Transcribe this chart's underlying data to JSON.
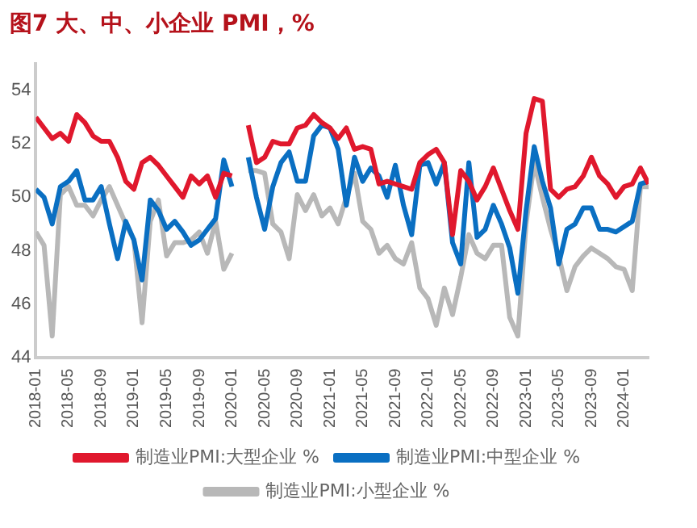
{
  "chart_data": {
    "type": "line",
    "title": "图7 大、中、小企业 PMI，%",
    "x": [
      "2018-01",
      "2018-02",
      "2018-03",
      "2018-04",
      "2018-05",
      "2018-06",
      "2018-07",
      "2018-08",
      "2018-09",
      "2018-10",
      "2018-11",
      "2018-12",
      "2019-01",
      "2019-02",
      "2019-03",
      "2019-04",
      "2019-05",
      "2019-06",
      "2019-07",
      "2019-08",
      "2019-09",
      "2019-10",
      "2019-11",
      "2019-12",
      "2020-01",
      "2020-02",
      "2020-03",
      "2020-04",
      "2020-05",
      "2020-06",
      "2020-07",
      "2020-08",
      "2020-09",
      "2020-10",
      "2020-11",
      "2020-12",
      "2021-01",
      "2021-02",
      "2021-03",
      "2021-04",
      "2021-05",
      "2021-06",
      "2021-07",
      "2021-08",
      "2021-09",
      "2021-10",
      "2021-11",
      "2021-12",
      "2022-01",
      "2022-02",
      "2022-03",
      "2022-04",
      "2022-05",
      "2022-06",
      "2022-07",
      "2022-08",
      "2022-09",
      "2022-10",
      "2022-11",
      "2022-12",
      "2023-01",
      "2023-02",
      "2023-03",
      "2023-04",
      "2023-05",
      "2023-06",
      "2023-07",
      "2023-08",
      "2023-09",
      "2023-10",
      "2023-11",
      "2023-12",
      "2024-01",
      "2024-02",
      "2024-03",
      "2024-04"
    ],
    "series": [
      {
        "name": "制造业PMI:大型企业 %",
        "color": "#e0182d",
        "values": [
          53.0,
          52.6,
          52.2,
          52.4,
          52.1,
          53.1,
          52.8,
          52.3,
          52.1,
          52.1,
          51.5,
          50.6,
          50.3,
          51.3,
          51.5,
          51.2,
          50.8,
          50.4,
          50.0,
          50.8,
          50.5,
          50.8,
          50.0,
          50.9,
          50.8,
          null,
          52.7,
          51.3,
          51.5,
          52.1,
          52.0,
          52.0,
          52.6,
          52.7,
          53.1,
          52.8,
          52.6,
          52.2,
          52.6,
          51.8,
          51.9,
          51.8,
          50.5,
          50.6,
          50.5,
          50.4,
          50.3,
          51.3,
          51.6,
          51.8,
          51.3,
          48.6,
          51.0,
          50.6,
          49.9,
          50.4,
          51.1,
          50.3,
          49.5,
          48.8,
          52.4,
          53.7,
          53.6,
          50.3,
          50.0,
          50.3,
          50.4,
          50.8,
          51.5,
          50.8,
          50.5,
          50.0,
          50.4,
          50.5,
          51.1,
          50.5
        ]
      },
      {
        "name": "制造业PMI:中型企业 %",
        "color": "#0a6fc2",
        "values": [
          50.3,
          50.0,
          49.0,
          50.4,
          50.6,
          51.0,
          49.9,
          49.9,
          50.4,
          49.0,
          47.7,
          49.1,
          48.4,
          46.9,
          49.9,
          49.5,
          48.8,
          49.1,
          48.7,
          48.2,
          48.4,
          48.8,
          49.2,
          51.4,
          50.4,
          null,
          51.5,
          50.0,
          48.8,
          50.4,
          51.3,
          51.7,
          50.6,
          50.6,
          52.3,
          52.7,
          52.6,
          51.8,
          49.7,
          51.5,
          50.6,
          51.1,
          50.8,
          50.0,
          51.2,
          49.7,
          48.6,
          51.2,
          51.3,
          50.5,
          51.3,
          48.3,
          47.5,
          51.3,
          48.5,
          48.8,
          49.7,
          49.0,
          48.1,
          46.4,
          49.5,
          51.9,
          50.6,
          49.6,
          47.5,
          48.8,
          49.0,
          49.6,
          49.6,
          48.8,
          48.8,
          48.7,
          48.9,
          49.1,
          50.5,
          50.6
        ]
      },
      {
        "name": "制造业PMI:小型企业 %",
        "color": "#b8b8b8",
        "values": [
          48.7,
          48.2,
          44.8,
          50.1,
          50.4,
          49.7,
          49.7,
          49.3,
          49.9,
          50.4,
          49.7,
          49.0,
          48.4,
          45.3,
          49.1,
          49.9,
          47.8,
          48.3,
          48.3,
          48.4,
          48.7,
          47.9,
          49.1,
          47.3,
          47.9,
          null,
          51.0,
          51.0,
          50.9,
          49.0,
          48.7,
          47.7,
          50.1,
          49.5,
          50.1,
          49.3,
          49.6,
          49.0,
          50.0,
          50.9,
          49.1,
          48.8,
          47.9,
          48.2,
          47.7,
          47.5,
          48.3,
          46.6,
          46.2,
          45.2,
          46.6,
          45.6,
          47.0,
          48.6,
          47.9,
          47.7,
          48.2,
          48.2,
          45.5,
          44.8,
          49.0,
          51.3,
          50.0,
          48.8,
          47.8,
          46.5,
          47.4,
          47.8,
          48.1,
          47.9,
          47.7,
          47.4,
          47.3,
          46.5,
          50.4,
          50.4
        ]
      }
    ],
    "xlim": [
      "2018-01",
      "2024-04"
    ],
    "xticks": [
      "2018-01",
      "2018-05",
      "2018-09",
      "2019-01",
      "2019-05",
      "2019-09",
      "2020-01",
      "2020-05",
      "2020-09",
      "2021-01",
      "2021-05",
      "2021-09",
      "2022-01",
      "2022-05",
      "2022-09",
      "2023-01",
      "2023-05",
      "2023-09",
      "2024-01"
    ],
    "ylim": [
      44,
      55
    ],
    "yticks": [
      44,
      46,
      48,
      50,
      52,
      54
    ],
    "grid": false,
    "legend": "bottom",
    "marker": "none",
    "line_style": "solid"
  }
}
